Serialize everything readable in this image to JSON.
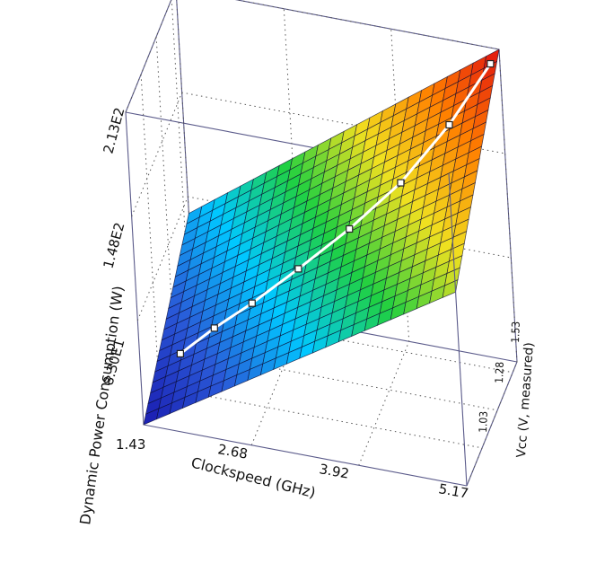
{
  "chart_data": {
    "type": "surface3d",
    "title": "",
    "xlabel": "Clockspeed (GHz)",
    "ylabel": "Vcc (V, measured)",
    "zlabel": "Dynamic Power Consumption (W)",
    "x_ticks": [
      "1.43",
      "2.68",
      "3.92",
      "5.17"
    ],
    "y_ticks": [
      "1.03",
      "1.28",
      "1.53"
    ],
    "z_ticks": [
      "8.30E1",
      "1.48E2",
      "2.13E2"
    ],
    "xlim": [
      1.43,
      5.17
    ],
    "ylim": [
      0.78,
      1.6
    ],
    "zlim": [
      18,
      213
    ],
    "colormap": [
      "#1a1ab0",
      "#2a5ad8",
      "#00c8ff",
      "#20d040",
      "#f0e020",
      "#ff8000",
      "#e01010"
    ],
    "data_points": [
      {
        "x": 1.85,
        "y": 0.85,
        "z": 60
      },
      {
        "x": 2.2,
        "y": 0.93,
        "z": 72
      },
      {
        "x": 2.6,
        "y": 1.0,
        "z": 85
      },
      {
        "x": 3.1,
        "y": 1.08,
        "z": 104
      },
      {
        "x": 3.65,
        "y": 1.17,
        "z": 126
      },
      {
        "x": 4.2,
        "y": 1.27,
        "z": 151
      },
      {
        "x": 4.7,
        "y": 1.4,
        "z": 180
      },
      {
        "x": 5.1,
        "y": 1.55,
        "z": 208
      }
    ],
    "grid": true
  }
}
